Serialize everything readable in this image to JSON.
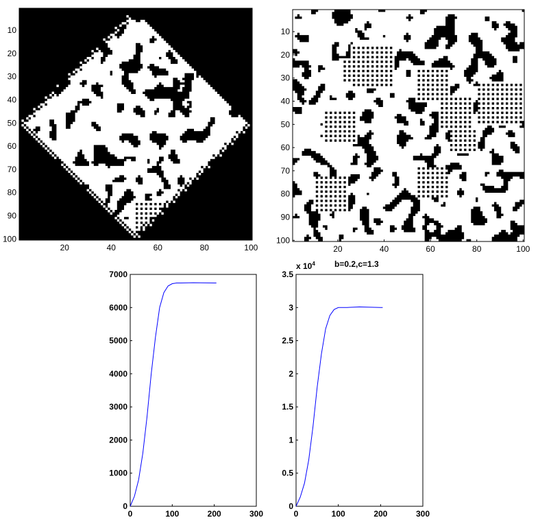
{
  "chart_data": [
    {
      "type": "heatmap",
      "palette": [
        "#000000",
        "#ffffff"
      ],
      "grid_size": 100,
      "shape": "diamond",
      "xlim": [
        1,
        100
      ],
      "ylim": [
        1,
        100
      ],
      "xticks": [
        20,
        40,
        60,
        80,
        100
      ],
      "yticks": [
        10,
        20,
        30,
        40,
        50,
        60,
        70,
        80,
        90,
        100
      ]
    },
    {
      "type": "heatmap",
      "palette": [
        "#000000",
        "#ffffff"
      ],
      "grid_size": 100,
      "shape": "full",
      "xlim": [
        1,
        100
      ],
      "ylim": [
        1,
        100
      ],
      "xticks": [
        20,
        40,
        60,
        80,
        100
      ],
      "yticks": [
        10,
        20,
        30,
        40,
        50,
        60,
        70,
        80,
        90,
        100
      ]
    },
    {
      "type": "line",
      "color": "#0000ff",
      "x": [
        0,
        10,
        20,
        30,
        40,
        50,
        60,
        70,
        80,
        90,
        100,
        110,
        120,
        150,
        200,
        205
      ],
      "y": [
        0,
        300,
        800,
        1600,
        2700,
        4000,
        5100,
        6000,
        6450,
        6650,
        6720,
        6740,
        6740,
        6750,
        6740,
        6740
      ],
      "xlim": [
        0,
        300
      ],
      "ylim": [
        0,
        7000
      ],
      "xticks": [
        "0",
        "100",
        "200",
        "300"
      ],
      "yticks": [
        "0",
        "1000",
        "2000",
        "3000",
        "4000",
        "5000",
        "6000",
        "7000"
      ]
    },
    {
      "type": "line",
      "color": "#0000ff",
      "title": "b=0.2,c=1.3",
      "exponent_label": "x 10",
      "exponent_power": "4",
      "x": [
        0,
        10,
        20,
        30,
        40,
        50,
        60,
        70,
        80,
        90,
        100,
        110,
        120,
        150,
        200,
        205
      ],
      "y": [
        0,
        0.14,
        0.35,
        0.7,
        1.2,
        1.8,
        2.3,
        2.68,
        2.88,
        2.97,
        3.0,
        3.0,
        3.0,
        3.01,
        3.0,
        3.0
      ],
      "xlim": [
        0,
        300
      ],
      "ylim": [
        0,
        3.5
      ],
      "xticks": [
        "0",
        "100",
        "200",
        "300"
      ],
      "yticks": [
        "0",
        "0.5",
        "1",
        "1.5",
        "2",
        "2.5",
        "3",
        "3.5"
      ]
    }
  ]
}
